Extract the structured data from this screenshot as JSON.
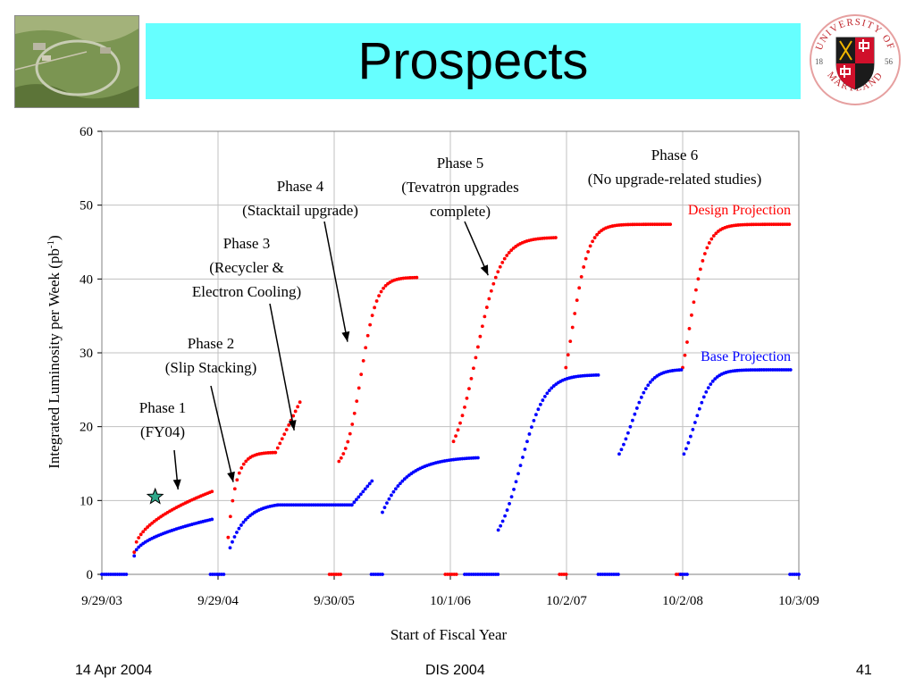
{
  "slide": {
    "title": "Prospects",
    "footer_left": "14 Apr 2004",
    "footer_center": "DIS 2004",
    "footer_right": "41",
    "seal_text_top": "UNIVERSITY OF",
    "seal_text_bottom": "MARYLAND",
    "seal_year_left": "18",
    "seal_year_right": "56"
  },
  "colors": {
    "title_bg": "#66ffff",
    "design": "#ff0000",
    "base": "#0000ff",
    "marker": "#2ea88a"
  },
  "chart_data": {
    "type": "scatter",
    "title": "",
    "xlabel": "Start of Fiscal Year",
    "ylabel": "Integrated Luminosity per Week (pb",
    "ylabel_sup": "-1",
    "ylabel_close": ")",
    "xlim": [
      "2003-09-29",
      "2009-10-03"
    ],
    "ylim": [
      0,
      60
    ],
    "yticks": [
      0,
      10,
      20,
      30,
      40,
      50,
      60
    ],
    "xticks": [
      {
        "date": "2003-09-29",
        "label": "9/29/03"
      },
      {
        "date": "2004-09-29",
        "label": "9/29/04"
      },
      {
        "date": "2005-09-30",
        "label": "9/30/05"
      },
      {
        "date": "2006-10-01",
        "label": "10/1/06"
      },
      {
        "date": "2007-10-02",
        "label": "10/2/07"
      },
      {
        "date": "2008-10-02",
        "label": "10/2/08"
      },
      {
        "date": "2009-10-03",
        "label": "10/3/09"
      }
    ],
    "grid": "vertical-and-horizontal",
    "series": [
      {
        "name": "Design Projection",
        "color": "#ff0000",
        "segments": [
          {
            "x0": "2004-01-09",
            "x1": "2004-09-15",
            "y0": 3,
            "y1": 11.3,
            "shape": "sqrt"
          },
          {
            "x0": "2004-10-31",
            "x1": "2005-03-29",
            "y0": 5,
            "y1": 16.5,
            "shape": "satexp",
            "k": 6
          },
          {
            "x0": "2005-03-29",
            "x1": "2005-06-16",
            "y0": 16.5,
            "y1": 23.5,
            "shape": "linear"
          },
          {
            "x0": "2005-10-15",
            "x1": "2006-06-21",
            "y0": 15.3,
            "y1": 40.2,
            "shape": "sigmoid",
            "c": 0.28,
            "s": 0.1
          },
          {
            "x0": "2006-10-11",
            "x1": "2007-08-31",
            "y0": 18,
            "y1": 45.6,
            "shape": "sigmoid",
            "c": 0.22,
            "s": 0.12
          },
          {
            "x0": "2007-09-30",
            "x1": "2008-08-25",
            "y0": 28,
            "y1": 47.4,
            "shape": "sigmoid",
            "c": 0.06,
            "s": 0.08
          },
          {
            "x0": "2008-10-02",
            "x1": "2009-09-07",
            "y0": 28,
            "y1": 47.4,
            "shape": "sigmoid",
            "c": 0.06,
            "s": 0.08
          }
        ],
        "baseline": [
          {
            "x0": "2005-09-15",
            "x1": "2005-10-20"
          },
          {
            "x0": "2006-09-15",
            "x1": "2006-10-20"
          },
          {
            "x0": "2007-09-10",
            "x1": "2007-10-05"
          },
          {
            "x0": "2008-09-12",
            "x1": "2008-10-02"
          }
        ]
      },
      {
        "name": "Base Projection",
        "color": "#0000ff",
        "segments": [
          {
            "x0": "2004-01-09",
            "x1": "2004-09-15",
            "y0": 2.5,
            "y1": 7.5,
            "shape": "sqrt"
          },
          {
            "x0": "2004-11-06",
            "x1": "2005-04-06",
            "y0": 3.6,
            "y1": 9.4,
            "shape": "satexp",
            "k": 3
          },
          {
            "x0": "2005-04-06",
            "x1": "2005-11-25",
            "y0": 9.4,
            "y1": 9.4,
            "shape": "linear"
          },
          {
            "x0": "2005-11-25",
            "x1": "2006-01-30",
            "y0": 9.4,
            "y1": 12.8,
            "shape": "linear"
          },
          {
            "x0": "2006-03-01",
            "x1": "2007-01-01",
            "y0": 8.4,
            "y1": 15.8,
            "shape": "satexp",
            "k": 4
          },
          {
            "x0": "2007-03-01",
            "x1": "2008-01-16",
            "y0": 6,
            "y1": 27,
            "shape": "sigmoid",
            "c": 0.22,
            "s": 0.12
          },
          {
            "x0": "2008-03-16",
            "x1": "2008-09-29",
            "y0": 16.3,
            "y1": 27.7,
            "shape": "sigmoid",
            "c": 0.2,
            "s": 0.15
          },
          {
            "x0": "2008-10-06",
            "x1": "2009-09-07",
            "y0": 16.3,
            "y1": 27.7,
            "shape": "sigmoid",
            "c": 0.1,
            "s": 0.08
          }
        ],
        "baseline": [
          {
            "x0": "2003-09-29",
            "x1": "2003-12-15"
          },
          {
            "x0": "2004-09-05",
            "x1": "2004-10-20"
          },
          {
            "x0": "2006-01-25",
            "x1": "2006-03-01"
          },
          {
            "x0": "2006-11-15",
            "x1": "2007-03-01"
          },
          {
            "x0": "2008-01-10",
            "x1": "2008-03-16"
          },
          {
            "x0": "2008-09-25",
            "x1": "2008-10-20"
          },
          {
            "x0": "2009-09-05",
            "x1": "2009-10-03"
          }
        ]
      }
    ],
    "marker": {
      "date": "2004-03-15",
      "y": 10.5,
      "shape": "star",
      "color": "#2ea88a"
    },
    "annotations": [
      {
        "id": "phase1",
        "lines": [
          "Phase 1",
          "(FY04)"
        ],
        "arrow_to": {
          "date": "2004-05-26",
          "y": 11.5
        }
      },
      {
        "id": "phase2",
        "lines": [
          "Phase 2",
          "(Slip Stacking)"
        ],
        "arrow_to": {
          "date": "2004-11-16",
          "y": 12.5
        }
      },
      {
        "id": "phase3",
        "lines": [
          "Phase 3",
          "(Recycler &",
          "Electron Cooling)"
        ],
        "arrow_to": {
          "date": "2005-05-27",
          "y": 19.5
        }
      },
      {
        "id": "phase4",
        "lines": [
          "Phase 4",
          "(Stacktail upgrade)"
        ],
        "arrow_to": {
          "date": "2005-11-11",
          "y": 31.5
        }
      },
      {
        "id": "phase5",
        "lines": [
          "Phase 5",
          "(Tevatron upgrades",
          "complete)"
        ],
        "arrow_to": {
          "date": "2007-01-28",
          "y": 40.5
        }
      },
      {
        "id": "phase6",
        "lines": [
          "Phase 6",
          "(No upgrade-related studies)"
        ],
        "arrow_to": null
      }
    ],
    "legend": [
      {
        "text": "Design Projection",
        "color": "#ff0000",
        "placement": "upper-right"
      },
      {
        "text": "Base Projection",
        "color": "#0000ff",
        "placement": "middle-right"
      }
    ]
  }
}
